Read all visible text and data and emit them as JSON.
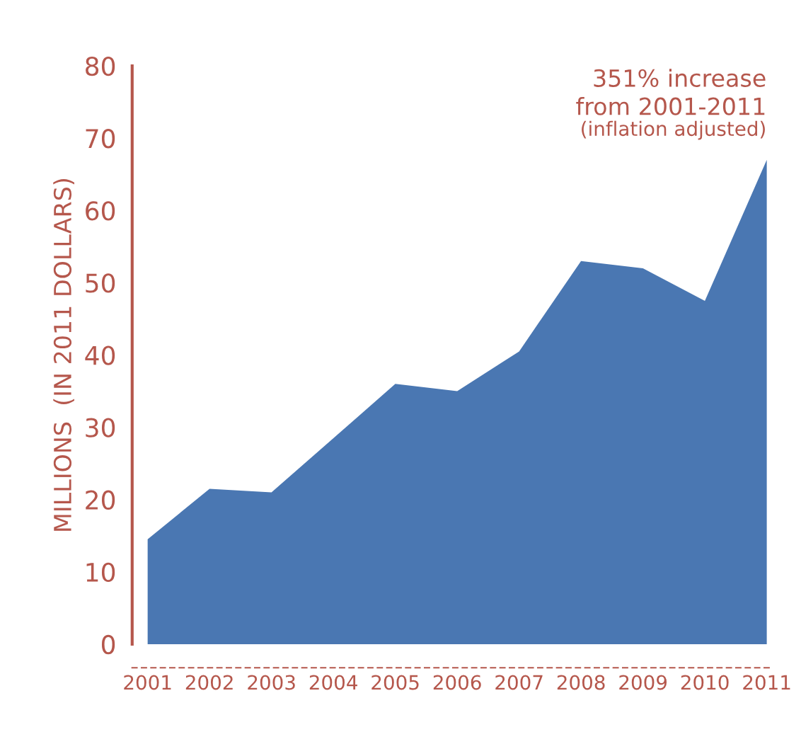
{
  "chart_data": {
    "type": "area",
    "ylabel": "MILLIONS  (IN 2011 DOLLARS)",
    "categories": [
      "2001",
      "2002",
      "2003",
      "2004",
      "2005",
      "2006",
      "2007",
      "2008",
      "2009",
      "2010",
      "2011"
    ],
    "series": [
      {
        "color": "#4a77b2",
        "values": [
          14.5,
          21.5,
          21,
          28.5,
          36,
          35,
          40.5,
          53,
          52,
          47.5,
          67
        ]
      }
    ],
    "ylim": [
      0,
      80
    ],
    "yticks": [
      0,
      10,
      20,
      30,
      40,
      50,
      60,
      70,
      80
    ],
    "grid": false,
    "legend": false,
    "annotations": [
      "351% increase\nfrom 2001-2011",
      "(inflation adjusted)"
    ]
  }
}
